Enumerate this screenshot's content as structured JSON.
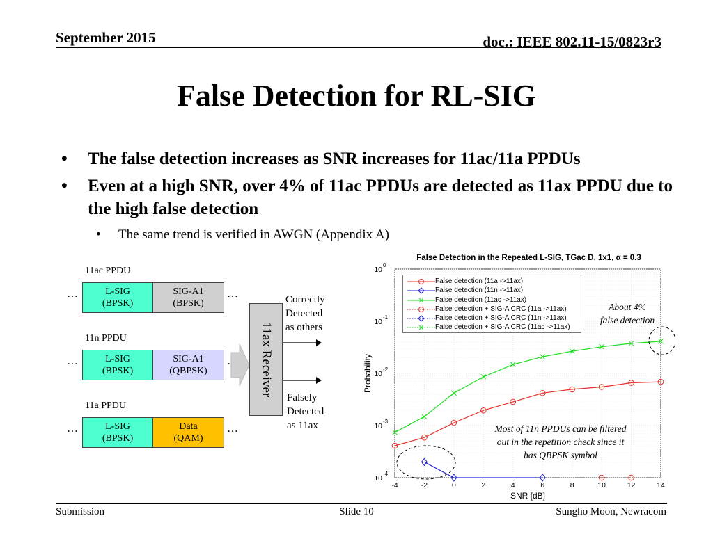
{
  "header": {
    "date": "September 2015",
    "doc": "doc.: IEEE 802.11-15/0823r3"
  },
  "title": "False Detection for RL-SIG",
  "bullets": [
    "The false detection increases as SNR increases for 11ac/11a PPDUs",
    "Even at a high SNR, over 4% of 11ac PPDUs are detected as 11ax PPDU due to the high false detection"
  ],
  "sub_bullet": "The same trend is verified in AWGN (Appendix A)",
  "diagram": {
    "ppdus": [
      {
        "label": "11ac PPDU",
        "field1": "L-SIG",
        "mod1": "(BPSK)",
        "field2": "SIG-A1",
        "mod2": "(BPSK)"
      },
      {
        "label": "11n PPDU",
        "field1": "L-SIG",
        "mod1": "(BPSK)",
        "field2": "SIG-A1",
        "mod2": "(QBPSK)"
      },
      {
        "label": "11a PPDU",
        "field1": "L-SIG",
        "mod1": "(BPSK)",
        "field2": "Data",
        "mod2": "(QAM)"
      }
    ],
    "ellipsis": "…",
    "receiver": "11ax Receiver",
    "correct": [
      "Correctly",
      "Detected",
      "as others"
    ],
    "false": [
      "Falsely",
      "Detected",
      "as 11ax"
    ]
  },
  "colors": {
    "red": "#e8302a",
    "blue": "#2020d0",
    "green": "#22dd22",
    "lsig": "#4effd0",
    "data": "#ffc000"
  },
  "chart_data": {
    "type": "line",
    "title": "False Detection in the Repeated L-SIG, TGac D, 1x1, α = 0.3",
    "xlabel": "SNR [dB]",
    "ylabel": "Probability",
    "xlim": [
      -4,
      14
    ],
    "ylim": [
      0.0001,
      1
    ],
    "yscale": "log",
    "x_ticks": [
      "-4",
      "-2",
      "0",
      "2",
      "4",
      "6",
      "8",
      "10",
      "12",
      "14"
    ],
    "y_ticks": [
      {
        "base": "10",
        "exp": "0"
      },
      {
        "base": "10",
        "exp": "-1"
      },
      {
        "base": "10",
        "exp": "-2"
      },
      {
        "base": "10",
        "exp": "-3"
      },
      {
        "base": "10",
        "exp": "-4"
      }
    ],
    "x": [
      -4,
      -2,
      0,
      2,
      4,
      6,
      8,
      10,
      12,
      14
    ],
    "series": [
      {
        "name": "False detection (11a ->11ax)",
        "color": "#e8302a",
        "marker": "circle",
        "dashed": false,
        "values": [
          0.00041,
          0.00059,
          0.00113,
          0.00195,
          0.00285,
          0.0042,
          0.00495,
          0.0055,
          0.0066,
          0.0069
        ]
      },
      {
        "name": "False detection (11n ->11ax)",
        "color": "#2020d0",
        "marker": "diamond",
        "dashed": false,
        "values": [
          null,
          0.0002,
          0.0001,
          null,
          null,
          0.0001,
          null,
          null,
          null,
          null
        ]
      },
      {
        "name": "False detection (11ac ->11ax)",
        "color": "#22dd22",
        "marker": "x",
        "dashed": false,
        "values": [
          0.00074,
          0.00148,
          0.0042,
          0.0086,
          0.0148,
          0.0208,
          0.0266,
          0.0324,
          0.0375,
          0.0412
        ]
      },
      {
        "name": "False detection + SIG-A CRC (11a ->11ax)",
        "color": "#e8302a",
        "marker": "circle",
        "dashed": true,
        "values": [
          null,
          null,
          null,
          null,
          null,
          null,
          null,
          0.0001,
          0.0001,
          null
        ]
      },
      {
        "name": "False detection + SIG-A CRC (11n ->11ax)",
        "color": "#2020d0",
        "marker": "diamond",
        "dashed": true,
        "values": [
          null,
          null,
          null,
          null,
          null,
          null,
          null,
          null,
          null,
          null
        ]
      },
      {
        "name": "False detection + SIG-A CRC (11ac ->11ax)",
        "color": "#22dd22",
        "marker": "x",
        "dashed": true,
        "values": [
          null,
          null,
          null,
          null,
          null,
          null,
          null,
          null,
          null,
          null
        ]
      }
    ],
    "annotations": [
      [
        "About 4%",
        "false detection"
      ],
      [
        "Most of 11n PPDUs can be filtered",
        "out in the repetition check since it",
        "has QBPSK symbol"
      ]
    ]
  },
  "footer": {
    "left": "Submission",
    "center": "Slide 10",
    "right": "Sungho Moon, Newracom"
  }
}
